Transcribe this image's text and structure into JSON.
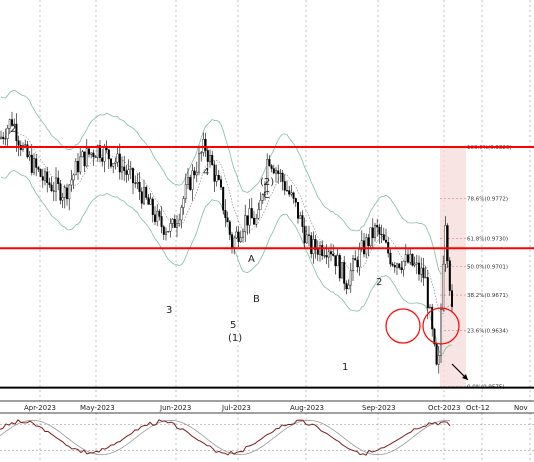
{
  "chart_data": {
    "type": "candlestick",
    "price_range": [
      0.956,
      0.998
    ],
    "x_tick_labels": [
      "Apr-2023",
      "May-2023",
      "Jun-2023",
      "Jul-2023",
      "Aug-2023",
      "Sep-2023",
      "Oct-2023",
      "Oct-12",
      "Nov"
    ],
    "horizontal_levels": [
      {
        "price": 0.9826,
        "color": "#ff0000",
        "role": "resistance"
      },
      {
        "price": 0.972,
        "color": "#ff0000",
        "role": "resistance"
      },
      {
        "price": 0.9574,
        "color": "#000000",
        "role": "support"
      }
    ],
    "fibonacci": [
      {
        "label": "100.0%(0.9826)",
        "price": 0.9826
      },
      {
        "label": "78.6%(0.9772)",
        "price": 0.9772
      },
      {
        "label": "61.8%(0.9730)",
        "price": 0.973
      },
      {
        "label": "50.0%(0.9701)",
        "price": 0.9701
      },
      {
        "label": "38.2%(0.9671)",
        "price": 0.9671
      },
      {
        "label": "23.6%(0.9634)",
        "price": 0.9634
      },
      {
        "label": "0.0%(0.9575)",
        "price": 0.9575
      }
    ],
    "wave_labels": [
      "2",
      "4",
      "(2)",
      "C",
      "A",
      "B",
      "3",
      "5",
      "(1)",
      "2",
      "1"
    ],
    "oscillator": {
      "levels": [
        80,
        20
      ]
    }
  },
  "colors": {
    "resistance": "#ff0000",
    "support": "#000000",
    "bands": "#7fbf9f",
    "oscillator_main": "#7a1f1f",
    "oscillator_signal": "#999999"
  }
}
